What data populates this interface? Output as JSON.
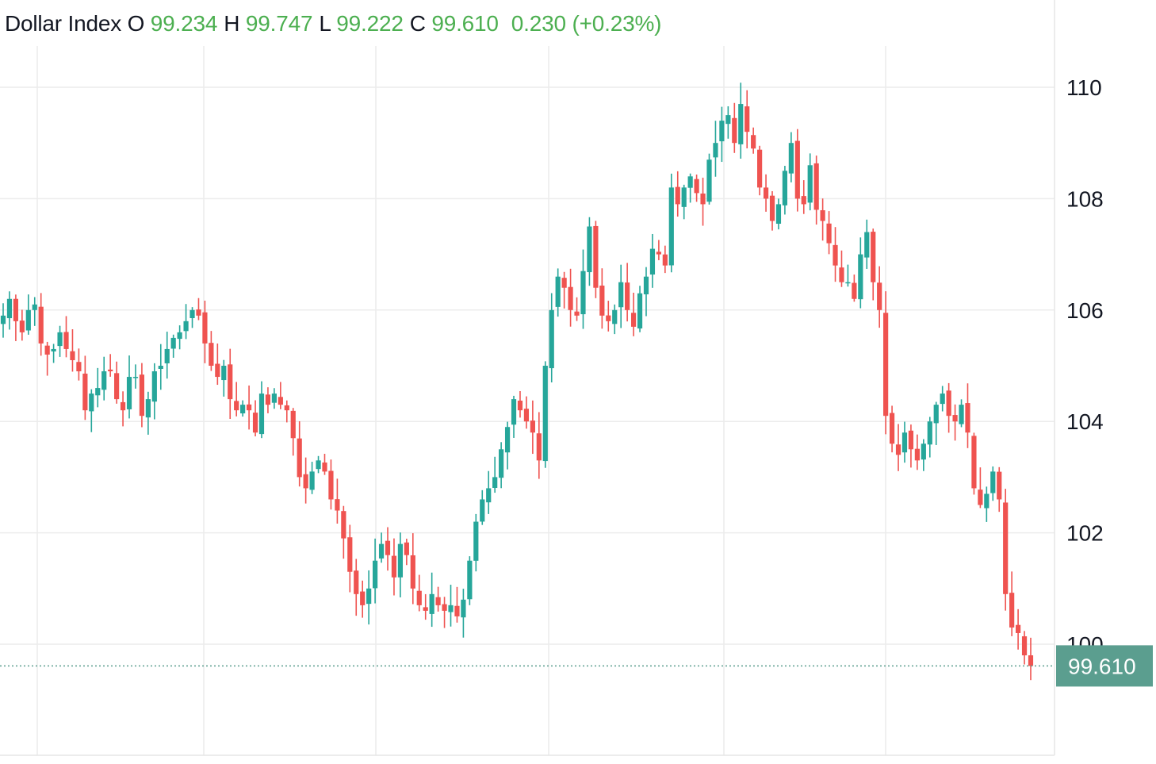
{
  "legend": {
    "symbol": "Dollar Index",
    "open_label": "O",
    "open": "99.234",
    "high_label": "H",
    "high": "99.747",
    "low_label": "L",
    "low": "99.222",
    "close_label": "C",
    "close": "99.610",
    "change": "0.230",
    "change_pct": "(+0.23%)"
  },
  "colors": {
    "up": "#26a69a",
    "down": "#ef5350",
    "legend_value": "#4caf50",
    "grid": "#ececec",
    "price_label_bg": "#5b9e8f",
    "price_line": "#5b9e8f"
  },
  "last_price_label": "99.610",
  "chart_data": {
    "type": "candlestick",
    "title": "",
    "ylim": [
      98.0,
      111.5
    ],
    "y_ticks": [
      100,
      102,
      104,
      106,
      108,
      110
    ],
    "y_tick_labels": [
      "100",
      "102",
      "104",
      "106",
      "108",
      "110"
    ],
    "grid": true,
    "last_price": 99.61,
    "series": [
      {
        "name": "Dollar Index",
        "close": [
          105.9,
          106.2,
          105.8,
          105.6,
          106.0,
          106.1,
          105.4,
          105.2,
          105.3,
          105.6,
          105.3,
          105.1,
          104.9,
          104.2,
          104.5,
          104.6,
          104.9,
          104.9,
          104.4,
          104.2,
          104.8,
          104.8,
          104.1,
          104.4,
          104.9,
          105.0,
          105.3,
          105.5,
          105.6,
          105.8,
          106.0,
          105.9,
          105.4,
          105.0,
          104.8,
          105.0,
          104.4,
          104.2,
          104.3,
          104.2,
          103.8,
          104.5,
          104.3,
          104.5,
          104.3,
          104.2,
          103.7,
          103.0,
          102.8,
          103.1,
          103.3,
          103.1,
          102.6,
          102.4,
          101.9,
          101.3,
          100.9,
          100.7,
          101.0,
          101.5,
          101.8,
          101.6,
          101.2,
          101.8,
          101.6,
          101.0,
          100.7,
          100.6,
          100.9,
          100.7,
          100.6,
          100.7,
          100.5,
          100.8,
          101.5,
          102.2,
          102.6,
          102.8,
          103.0,
          103.5,
          103.9,
          104.4,
          104.2,
          104.0,
          103.8,
          103.3,
          105.0,
          106.0,
          106.6,
          106.4,
          106.0,
          105.9,
          106.7,
          107.5,
          106.4,
          105.9,
          105.8,
          106.0,
          106.5,
          106.0,
          105.7,
          106.3,
          106.6,
          107.1,
          107.0,
          106.8,
          108.2,
          107.9,
          108.2,
          108.4,
          108.1,
          107.9,
          108.7,
          109.0,
          109.4,
          109.5,
          109.0,
          109.7,
          109.2,
          108.9,
          108.2,
          108.0,
          107.6,
          107.9,
          108.5,
          109.0,
          108.0,
          107.9,
          108.6,
          107.8,
          107.6,
          107.2,
          106.8,
          106.5,
          106.5,
          106.2,
          107.0,
          107.4,
          106.5,
          106.0,
          104.1,
          103.6,
          103.4,
          103.8,
          103.5,
          103.3,
          103.6,
          104.0,
          104.3,
          104.5,
          104.1,
          104.0,
          104.3,
          103.8,
          102.8,
          102.5,
          102.7,
          103.1,
          102.6,
          100.9,
          100.3,
          100.2,
          99.8,
          99.61
        ]
      }
    ]
  }
}
